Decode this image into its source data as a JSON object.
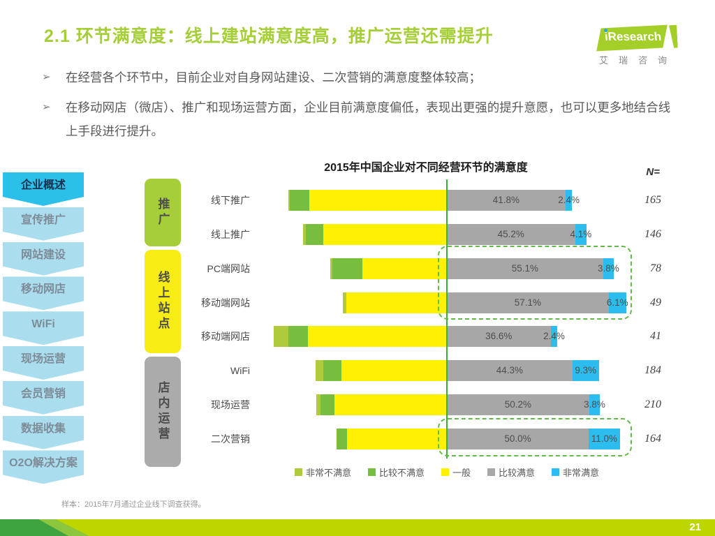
{
  "page": {
    "title": "2.1 环节满意度：线上建站满意度高，推广运营还需提升",
    "footnote": "样本：2015年7月通过企业线下调查获得。",
    "page_number": "21"
  },
  "logo": {
    "brand": "iResearch",
    "subtext": "艾瑞咨询"
  },
  "bullets": [
    "在经营各个环节中，目前企业对自身网站建设、二次营销的满意度整体较高；",
    "在移动网店（微店）、推广和现场运营方面，企业目前满意度偏低，表现出更强的提升意愿，也可以更多地结合线上手段进行提升。"
  ],
  "sidebar": {
    "items": [
      {
        "label": "企业概述",
        "active": true
      },
      {
        "label": "宣传推广",
        "active": false
      },
      {
        "label": "网站建设",
        "active": false
      },
      {
        "label": "移动网店",
        "active": false
      },
      {
        "label": "WiFi",
        "active": false
      },
      {
        "label": "现场运营",
        "active": false
      },
      {
        "label": "会员营销",
        "active": false
      },
      {
        "label": "数据收集",
        "active": false
      },
      {
        "label": "O2O解决方案",
        "active": false
      }
    ]
  },
  "categories": [
    {
      "label": "推广",
      "color": "#A5CE39"
    },
    {
      "label": "线上站点",
      "color": "#F7EC13"
    },
    {
      "label": "店内运营",
      "color": "#ABABAB"
    }
  ],
  "colors": {
    "accent_green": "#A5CE39",
    "sidebar_active_bg": "#2BC0EA",
    "sidebar_active_text": "#16324F",
    "sidebar_inactive_bg": "#AADEEF",
    "sidebar_inactive_text": "#7D8C98",
    "center_line": "#3AAE3A",
    "dash_border": "#62BB46",
    "bottom_bar": "#BED600"
  },
  "chart_data": {
    "type": "bar",
    "variant": "horizontal-diverging-stacked",
    "title": "2015年中国企业对不同经营环节的满意度",
    "n_label": "N=",
    "legend_position": "bottom",
    "legend": [
      {
        "key": "very_dissatisfied",
        "label": "非常不满意",
        "color": "#AFCB3B"
      },
      {
        "key": "dissatisfied",
        "label": "比较不满意",
        "color": "#76BD40"
      },
      {
        "key": "neutral",
        "label": "一般",
        "color": "#FFF101"
      },
      {
        "key": "satisfied",
        "label": "比较满意",
        "color": "#A7A7A7"
      },
      {
        "key": "very_satisfied",
        "label": "非常满意",
        "color": "#2CBDEE"
      }
    ],
    "note": "satisfied and very_satisfied values are labeled on chart; left-side segment values estimated from bar pixel lengths",
    "rows": [
      {
        "category": "线下推广",
        "values": {
          "very_dissatisfied": 0.5,
          "dissatisfied": 6.9,
          "neutral": 48.4,
          "satisfied": 41.8,
          "very_satisfied": 2.4
        },
        "labels": {
          "satisfied": "41.8%",
          "very_satisfied": "2.4%"
        },
        "n": "165"
      },
      {
        "category": "线上推广",
        "values": {
          "very_dissatisfied": 1.0,
          "dissatisfied": 6.2,
          "neutral": 43.5,
          "satisfied": 45.2,
          "very_satisfied": 4.1
        },
        "labels": {
          "satisfied": "45.2%",
          "very_satisfied": "4.1%"
        },
        "n": "146"
      },
      {
        "category": "PC端网站",
        "values": {
          "very_dissatisfied": 0.6,
          "dissatisfied": 10.8,
          "neutral": 29.7,
          "satisfied": 55.1,
          "very_satisfied": 3.8
        },
        "labels": {
          "satisfied": "55.1%",
          "very_satisfied": "3.8%"
        },
        "n": "78"
      },
      {
        "category": "移动端网站",
        "values": {
          "very_dissatisfied": 1.4,
          "dissatisfied": 0.0,
          "neutral": 35.4,
          "satisfied": 57.1,
          "very_satisfied": 6.1
        },
        "labels": {
          "satisfied": "57.1%",
          "very_satisfied": "6.1%"
        },
        "n": "49"
      },
      {
        "category": "移动端网店",
        "values": {
          "very_dissatisfied": 5.0,
          "dissatisfied": 7.0,
          "neutral": 49.0,
          "satisfied": 36.6,
          "very_satisfied": 2.4
        },
        "labels": {
          "satisfied": "36.6%",
          "very_satisfied": "2.4%"
        },
        "n": "41"
      },
      {
        "category": "WiFi",
        "values": {
          "very_dissatisfied": 2.7,
          "dissatisfied": 6.4,
          "neutral": 37.3,
          "satisfied": 44.3,
          "very_satisfied": 9.3
        },
        "labels": {
          "satisfied": "44.3%",
          "very_satisfied": "9.3%"
        },
        "n": "184"
      },
      {
        "category": "现场运营",
        "values": {
          "very_dissatisfied": 1.5,
          "dissatisfied": 4.9,
          "neutral": 39.6,
          "satisfied": 50.2,
          "very_satisfied": 3.8
        },
        "labels": {
          "satisfied": "50.2%",
          "very_satisfied": "3.8%"
        },
        "n": "210"
      },
      {
        "category": "二次营销",
        "values": {
          "very_dissatisfied": 0.0,
          "dissatisfied": 3.9,
          "neutral": 35.1,
          "satisfied": 50.0,
          "very_satisfied": 11.0
        },
        "labels": {
          "satisfied": "50.0%",
          "very_satisfied": "11.0%"
        },
        "n": "164"
      }
    ],
    "highlight_boxes": [
      "PC端网站 + 移动端网站 right half",
      "二次营销 right half"
    ]
  }
}
